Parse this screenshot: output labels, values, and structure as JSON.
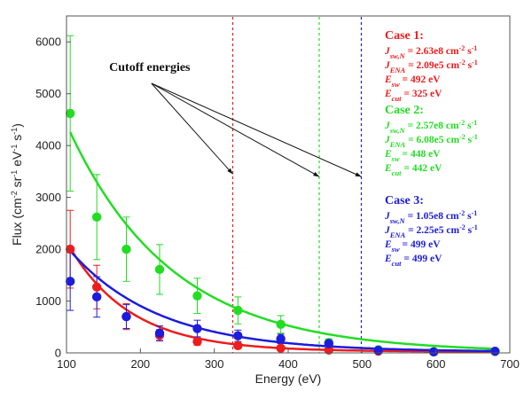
{
  "chart_data": {
    "type": "scatter",
    "xlabel": "Energy (eV)",
    "ylabel_parts": [
      "Flux (cm",
      "-2",
      " sr",
      "-1",
      " eV",
      "-1",
      " s",
      "-1",
      ")"
    ],
    "xlim": [
      100,
      700
    ],
    "ylim": [
      0,
      6500
    ],
    "xticks": [
      100,
      200,
      300,
      400,
      500,
      600,
      700
    ],
    "yticks": [
      0,
      1000,
      2000,
      3000,
      4000,
      5000,
      6000
    ],
    "grid": false,
    "series": [
      {
        "color": "#ee1c1c",
        "points": [
          {
            "x": 105,
            "y": 2000,
            "err": 750
          },
          {
            "x": 141,
            "y": 1270,
            "err": 420
          },
          {
            "x": 181,
            "y": 700,
            "err": 250
          },
          {
            "x": 226,
            "y": 340,
            "err": 110
          },
          {
            "x": 277,
            "y": 220,
            "err": 70
          },
          {
            "x": 332,
            "y": 140,
            "err": 40
          },
          {
            "x": 390,
            "y": 90,
            "err": 25
          },
          {
            "x": 455,
            "y": 55,
            "err": 15
          },
          {
            "x": 522,
            "y": 35,
            "err": 10
          },
          {
            "x": 597,
            "y": 20,
            "err": 8
          },
          {
            "x": 680,
            "y": 30,
            "err": 8
          }
        ],
        "fit": {
          "a": 2000,
          "b": 0.0119,
          "x0": 105,
          "floor": 25
        }
      },
      {
        "color": "#22dd22",
        "points": [
          {
            "x": 105,
            "y": 4620,
            "err": 1500
          },
          {
            "x": 141,
            "y": 2620,
            "err": 820
          },
          {
            "x": 181,
            "y": 2000,
            "err": 620
          },
          {
            "x": 226,
            "y": 1610,
            "err": 480
          },
          {
            "x": 277,
            "y": 1100,
            "err": 340
          },
          {
            "x": 332,
            "y": 820,
            "err": 260
          },
          {
            "x": 390,
            "y": 550,
            "err": 170
          },
          {
            "x": 455,
            "y": 200,
            "err": 70
          },
          {
            "x": 522,
            "y": 60,
            "err": 20
          },
          {
            "x": 597,
            "y": 25,
            "err": 10
          },
          {
            "x": 680,
            "y": 30,
            "err": 10
          }
        ],
        "fit": {
          "a": 4250,
          "b": 0.00715,
          "x0": 105,
          "floor": 10
        }
      },
      {
        "color": "#1c1cdd",
        "points": [
          {
            "x": 105,
            "y": 1380,
            "err": 560
          },
          {
            "x": 141,
            "y": 1080,
            "err": 390
          },
          {
            "x": 181,
            "y": 700,
            "err": 230
          },
          {
            "x": 226,
            "y": 380,
            "err": 140
          },
          {
            "x": 277,
            "y": 470,
            "err": 160
          },
          {
            "x": 332,
            "y": 330,
            "err": 110
          },
          {
            "x": 390,
            "y": 270,
            "err": 90
          },
          {
            "x": 455,
            "y": 180,
            "err": 60
          },
          {
            "x": 522,
            "y": 50,
            "err": 20
          },
          {
            "x": 597,
            "y": 20,
            "err": 8
          },
          {
            "x": 680,
            "y": 30,
            "err": 8
          }
        ],
        "fit": {
          "a": 1950,
          "b": 0.0083,
          "x0": 105,
          "floor": 20
        }
      }
    ],
    "cutoff_lines": [
      {
        "x": 325,
        "color": "#ee1c1c"
      },
      {
        "x": 442,
        "color": "#22dd22"
      },
      {
        "x": 499,
        "color": "#1c1cdd"
      }
    ],
    "annotation": {
      "text": "Cutoff energies",
      "anchor": [
        215,
        5200
      ],
      "arrow_targets": [
        [
          325,
          3450
        ],
        [
          442,
          3400
        ],
        [
          499,
          3400
        ]
      ]
    },
    "legend_placement": "right",
    "cases": [
      {
        "color": "#ee1c1c",
        "title": "Case 1:",
        "rows": [
          {
            "sym": "J",
            "sub": "sw,N",
            "eq": " = 2.63e8 cm",
            "e1": "-2",
            "mid": " s",
            "e2": "-1"
          },
          {
            "sym": "J",
            "sub": "ENA",
            "eq": " = 2.09e5 cm",
            "e1": "-2",
            "mid": " s",
            "e2": "-1"
          },
          {
            "sym": "E",
            "sub": "sw",
            "eq": " = 492 eV"
          },
          {
            "sym": "E",
            "sub": "cut",
            "eq": " = 325 eV"
          }
        ]
      },
      {
        "color": "#22dd22",
        "title": "Case 2:",
        "rows": [
          {
            "sym": "J",
            "sub": "sw,N",
            "eq": " = 2.57e8 cm",
            "e1": "-2",
            "mid": " s",
            "e2": "-1"
          },
          {
            "sym": "J",
            "sub": "ENA",
            "eq": " = 6.08e5 cm",
            "e1": "-2",
            "mid": " s",
            "e2": "-1"
          },
          {
            "sym": "E",
            "sub": "sw",
            "eq": " = 448 eV"
          },
          {
            "sym": "E",
            "sub": "cut",
            "eq": " = 442 eV"
          }
        ]
      },
      {
        "color": "#1c1cdd",
        "title": "Case 3:",
        "rows": [
          {
            "sym": "J",
            "sub": "sw,N",
            "eq": " = 1.05e8 cm",
            "e1": "-2",
            "mid": " s",
            "e2": "-1"
          },
          {
            "sym": "J",
            "sub": "ENA",
            "eq": " = 2.25e5 cm",
            "e1": "-2",
            "mid": " s",
            "e2": "-1"
          },
          {
            "sym": "E",
            "sub": "sw",
            "eq": " = 499 eV"
          },
          {
            "sym": "E",
            "sub": "cut",
            "eq": " = 499 eV"
          }
        ]
      }
    ]
  }
}
